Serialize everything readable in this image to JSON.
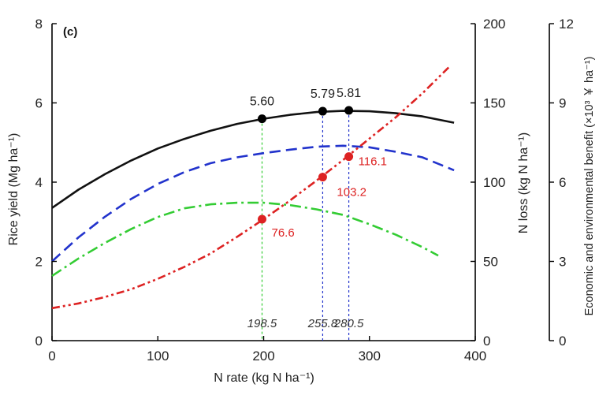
{
  "chart_data": {
    "type": "line",
    "panel_label": "(c)",
    "xlabel": "N rate (kg N ha⁻¹)",
    "ylabel_left": "Rice yield (Mg ha⁻¹)",
    "ylabel_right": "N loss (kg N ha⁻¹)",
    "ylabel_right2": "Economic and environmental benefit (×10³ ￥ ha⁻¹)",
    "xlim": [
      0,
      400
    ],
    "ylim_left": [
      0,
      8
    ],
    "ylim_right": [
      0,
      200
    ],
    "ylim_right2": [
      0,
      12
    ],
    "xticks": [
      "0",
      "100",
      "200",
      "300",
      "400"
    ],
    "yticks_left": [
      "0",
      "2",
      "4",
      "6",
      "8"
    ],
    "yticks_right": [
      "0",
      "50",
      "100",
      "150",
      "200"
    ],
    "yticks_right2": [
      "0",
      "3",
      "6",
      "9",
      "12"
    ],
    "series": [
      {
        "axis": "left",
        "color": "#111111",
        "dash": "solid",
        "x": [
          0,
          25,
          50,
          75,
          100,
          125,
          150,
          175,
          200,
          225,
          250,
          275,
          300,
          325,
          350,
          380
        ],
        "y": [
          3.35,
          3.81,
          4.2,
          4.55,
          4.85,
          5.09,
          5.3,
          5.47,
          5.6,
          5.7,
          5.77,
          5.8,
          5.79,
          5.74,
          5.66,
          5.5
        ]
      },
      {
        "axis": "right2",
        "color": "#2233cc",
        "dash": "dash",
        "x": [
          0,
          25,
          50,
          75,
          100,
          125,
          150,
          175,
          200,
          225,
          250,
          275,
          300,
          325,
          350,
          380
        ],
        "y": [
          3.0,
          3.91,
          4.69,
          5.37,
          5.93,
          6.38,
          6.72,
          6.94,
          7.1,
          7.23,
          7.34,
          7.38,
          7.32,
          7.15,
          6.94,
          6.45
        ]
      },
      {
        "axis": "right2",
        "color": "#33cc33",
        "dash": "dashdot",
        "x": [
          0,
          25,
          50,
          75,
          100,
          125,
          150,
          175,
          200,
          225,
          250,
          275,
          300,
          325,
          350,
          365
        ],
        "y": [
          2.45,
          3.11,
          3.7,
          4.23,
          4.68,
          5.01,
          5.16,
          5.22,
          5.22,
          5.13,
          4.97,
          4.76,
          4.41,
          4.01,
          3.54,
          3.22
        ]
      },
      {
        "axis": "right",
        "color": "#dd2222",
        "dash": "dashdotdot",
        "x": [
          0,
          25,
          50,
          75,
          100,
          125,
          150,
          175,
          200,
          225,
          250,
          275,
          300,
          325,
          350,
          375
        ],
        "y": [
          20.5,
          23.5,
          27.5,
          32.5,
          39.0,
          46.5,
          55.0,
          65.5,
          76.6,
          88.5,
          101.0,
          114.0,
          127.5,
          141.0,
          156.0,
          172.5
        ]
      }
    ],
    "yield_points": [
      {
        "x": 198.5,
        "y": 5.6,
        "label": "5.60"
      },
      {
        "x": 255.8,
        "y": 5.79,
        "label": "5.79"
      },
      {
        "x": 280.5,
        "y": 5.81,
        "label": "5.81"
      }
    ],
    "nloss_points": [
      {
        "x": 198.5,
        "y": 76.6,
        "label": "76.6"
      },
      {
        "x": 255.8,
        "y": 103.2,
        "label": "103.2"
      },
      {
        "x": 280.5,
        "y": 116.1,
        "label": "116.1"
      }
    ],
    "vlines": [
      {
        "x": 198.5,
        "label": "198.5",
        "color": "#33cc33"
      },
      {
        "x": 255.8,
        "label": "255.8",
        "color": "#2233cc"
      },
      {
        "x": 280.5,
        "label": "280.5",
        "color": "#2233cc"
      }
    ]
  }
}
